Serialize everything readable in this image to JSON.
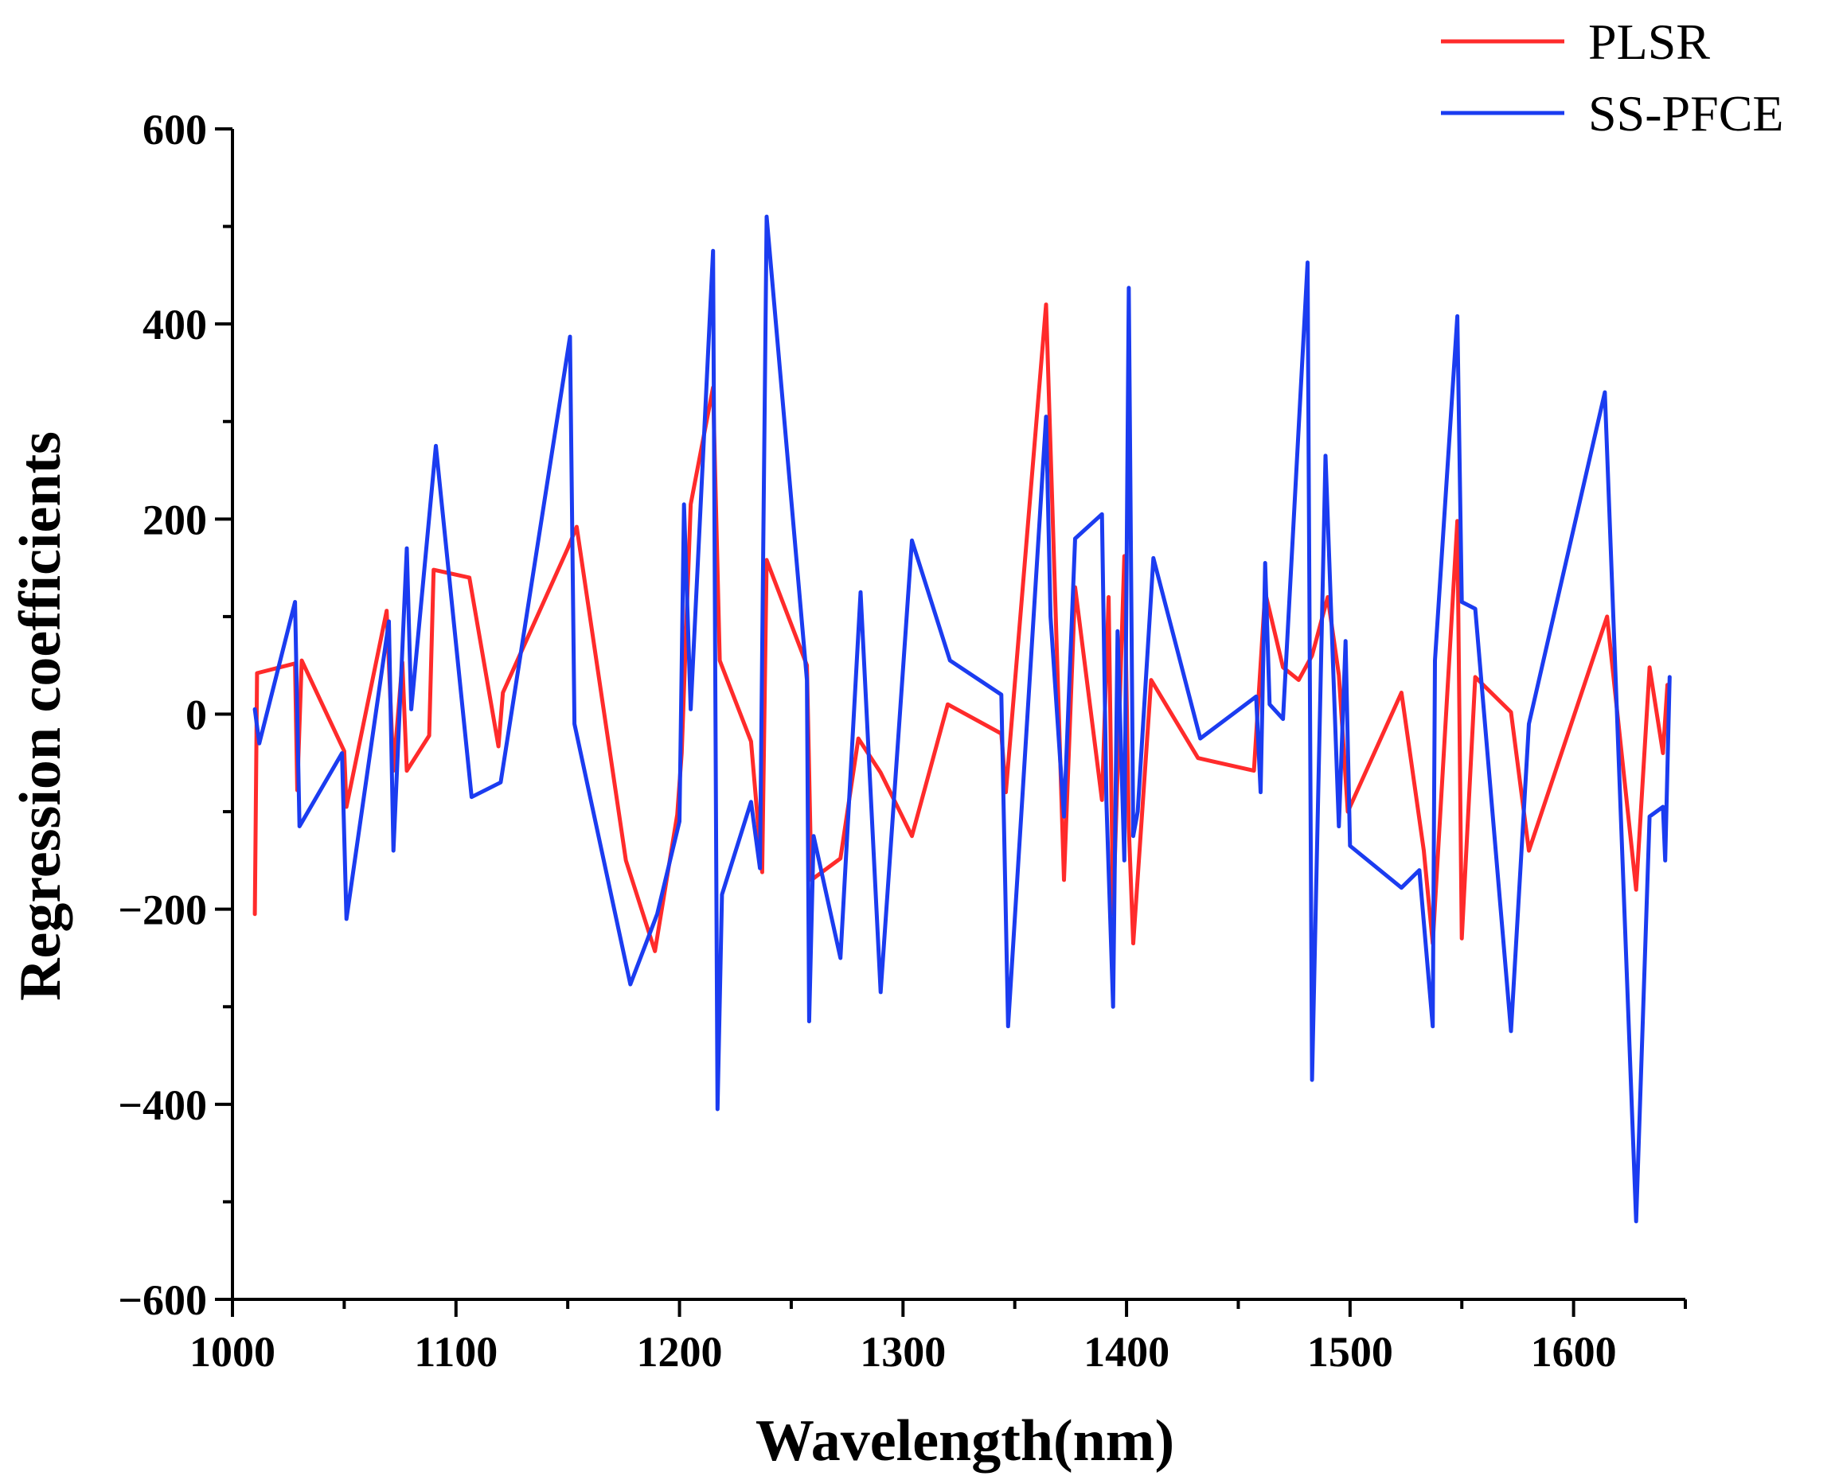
{
  "chart_data": {
    "type": "line",
    "title": "",
    "xlabel": "Wavelength(nm)",
    "ylabel": "Regression coefficients",
    "xlim": [
      1000,
      1650
    ],
    "ylim": [
      -600,
      600
    ],
    "xticks": [
      1000,
      1100,
      1200,
      1300,
      1400,
      1500,
      1600
    ],
    "yticks": [
      -600,
      -400,
      -200,
      0,
      200,
      400,
      600
    ],
    "xtick_labels": [
      "1000",
      "1100",
      "1200",
      "1300",
      "1400",
      "1500",
      "1600"
    ],
    "ytick_labels": [
      "−600",
      "−400",
      "−200",
      "0",
      "200",
      "400",
      "600"
    ],
    "grid": false,
    "legend_position": "top-right",
    "series": [
      {
        "name": "PLSR",
        "color": "#ff2b2b",
        "x": [
          1010,
          1011,
          1028,
          1029,
          1031,
          1050,
          1051,
          1069,
          1072,
          1076,
          1078,
          1088,
          1090,
          1106,
          1119,
          1121,
          1150,
          1154,
          1176,
          1189,
          1199,
          1201,
          1205,
          1215,
          1218,
          1232,
          1237,
          1239,
          1257,
          1259,
          1272,
          1280,
          1290,
          1304,
          1320,
          1344,
          1346,
          1364,
          1372,
          1377,
          1389,
          1392,
          1394,
          1399,
          1401,
          1403,
          1411,
          1432,
          1457,
          1462,
          1470,
          1477,
          1483,
          1490,
          1495,
          1499,
          1523,
          1533,
          1537,
          1548,
          1550,
          1556,
          1572,
          1580,
          1615,
          1628,
          1634,
          1640,
          1642
        ],
        "y": [
          -205,
          42,
          52,
          -78,
          55,
          -38,
          -95,
          106,
          -58,
          53,
          -58,
          -22,
          148,
          140,
          -33,
          22,
          170,
          192,
          -150,
          -243,
          -103,
          -40,
          215,
          335,
          55,
          -28,
          -162,
          158,
          50,
          -170,
          -148,
          -25,
          -60,
          -125,
          10,
          -20,
          -80,
          420,
          -170,
          130,
          -88,
          120,
          -205,
          162,
          -115,
          -235,
          35,
          -45,
          -58,
          125,
          48,
          35,
          60,
          120,
          40,
          -100,
          22,
          -140,
          -235,
          198,
          -230,
          38,
          2,
          -140,
          100,
          -180,
          48,
          -40,
          30
        ]
      },
      {
        "name": "SS-PFCE",
        "color": "#1b3cf0",
        "x": [
          1010,
          1012,
          1028,
          1030,
          1049,
          1051,
          1070,
          1072,
          1078,
          1080,
          1091,
          1107,
          1120,
          1151,
          1153,
          1178,
          1190,
          1200,
          1202,
          1205,
          1215,
          1217,
          1219,
          1232,
          1236,
          1239,
          1257,
          1258,
          1260,
          1272,
          1281,
          1290,
          1304,
          1321,
          1344,
          1347,
          1364,
          1366,
          1372,
          1377,
          1389,
          1391,
          1394,
          1396,
          1399,
          1401,
          1403,
          1405,
          1412,
          1433,
          1458,
          1460,
          1462,
          1464,
          1470,
          1481,
          1483,
          1489,
          1495,
          1498,
          1500,
          1523,
          1531,
          1537,
          1538,
          1548,
          1550,
          1556,
          1572,
          1580,
          1614,
          1628,
          1634,
          1640,
          1641,
          1643
        ],
        "y": [
          5,
          -30,
          115,
          -115,
          -40,
          -210,
          95,
          -140,
          170,
          5,
          275,
          -85,
          -70,
          387,
          -10,
          -277,
          -205,
          -110,
          215,
          5,
          475,
          -405,
          -185,
          -90,
          -158,
          510,
          35,
          -315,
          -125,
          -250,
          125,
          -285,
          178,
          55,
          20,
          -320,
          305,
          100,
          -105,
          180,
          205,
          -90,
          -300,
          85,
          -150,
          437,
          -125,
          -100,
          160,
          -25,
          18,
          -80,
          155,
          10,
          -5,
          463,
          -375,
          265,
          -115,
          75,
          -135,
          -178,
          -160,
          -320,
          55,
          408,
          115,
          108,
          -325,
          -10,
          330,
          -520,
          -105,
          -95,
          -150,
          38
        ]
      }
    ]
  }
}
